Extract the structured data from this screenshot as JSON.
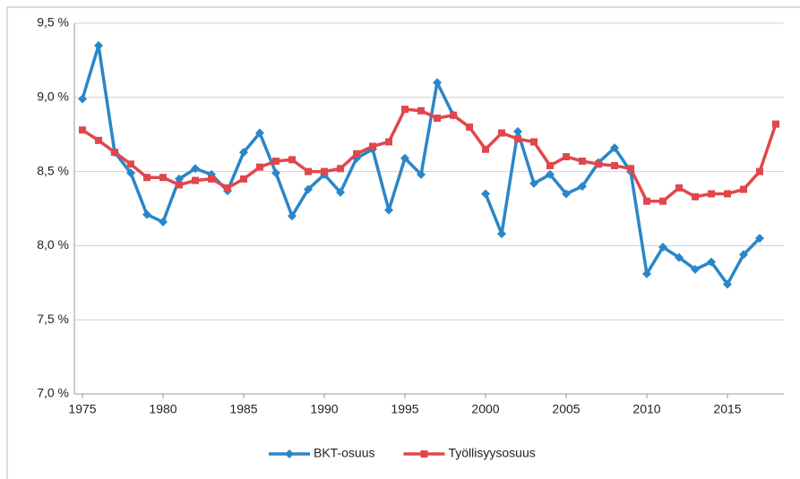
{
  "chart_data": {
    "type": "line",
    "x": [
      1975,
      1976,
      1977,
      1978,
      1979,
      1980,
      1981,
      1982,
      1983,
      1984,
      1985,
      1986,
      1987,
      1988,
      1989,
      1990,
      1991,
      1992,
      1993,
      1994,
      1995,
      1996,
      1997,
      1998,
      1999,
      2000,
      2001,
      2002,
      2003,
      2004,
      2005,
      2006,
      2007,
      2008,
      2009,
      2010,
      2011,
      2012,
      2013,
      2014,
      2015,
      2016,
      2017,
      2018
    ],
    "series": [
      {
        "name": "BKT-osuus",
        "color": "#2a86c8",
        "marker": "diamond",
        "values": [
          8.99,
          9.35,
          8.63,
          8.49,
          8.21,
          8.16,
          8.45,
          8.52,
          8.48,
          8.37,
          8.63,
          8.76,
          8.49,
          8.2,
          8.38,
          8.48,
          8.36,
          8.59,
          8.65,
          8.24,
          8.59,
          8.48,
          9.1,
          8.88,
          null,
          8.35,
          8.08,
          8.77,
          8.42,
          8.48,
          8.35,
          8.4,
          8.56,
          8.66,
          8.5,
          7.81,
          7.99,
          7.92,
          7.84,
          7.89,
          7.74,
          7.94,
          8.05,
          null
        ]
      },
      {
        "name": "Työllisyysosuus",
        "color": "#e0474c",
        "marker": "square",
        "values": [
          8.78,
          8.71,
          8.63,
          8.55,
          8.46,
          8.46,
          8.41,
          8.44,
          8.45,
          8.39,
          8.45,
          8.53,
          8.57,
          8.58,
          8.5,
          8.5,
          8.52,
          8.62,
          8.67,
          8.7,
          8.92,
          8.91,
          8.86,
          8.88,
          8.8,
          8.65,
          8.76,
          8.72,
          8.7,
          8.54,
          8.6,
          8.57,
          8.55,
          8.54,
          8.52,
          8.3,
          8.3,
          8.39,
          8.33,
          8.35,
          8.35,
          8.38,
          8.5,
          8.82
        ]
      }
    ],
    "xlim": [
      1974.5,
      2018.5
    ],
    "xticks": [
      1975,
      1980,
      1985,
      1990,
      1995,
      2000,
      2005,
      2010,
      2015
    ],
    "ylim": [
      7.0,
      9.5
    ],
    "yticks": [
      {
        "value": 7.0,
        "label": "7,0 %"
      },
      {
        "value": 7.5,
        "label": "7,5 %"
      },
      {
        "value": 8.0,
        "label": "8,0 %"
      },
      {
        "value": 8.5,
        "label": "8,5 %"
      },
      {
        "value": 9.0,
        "label": "9,0 %"
      },
      {
        "value": 9.5,
        "label": "9,5 %"
      }
    ],
    "grid": true,
    "legend": "bottom"
  }
}
